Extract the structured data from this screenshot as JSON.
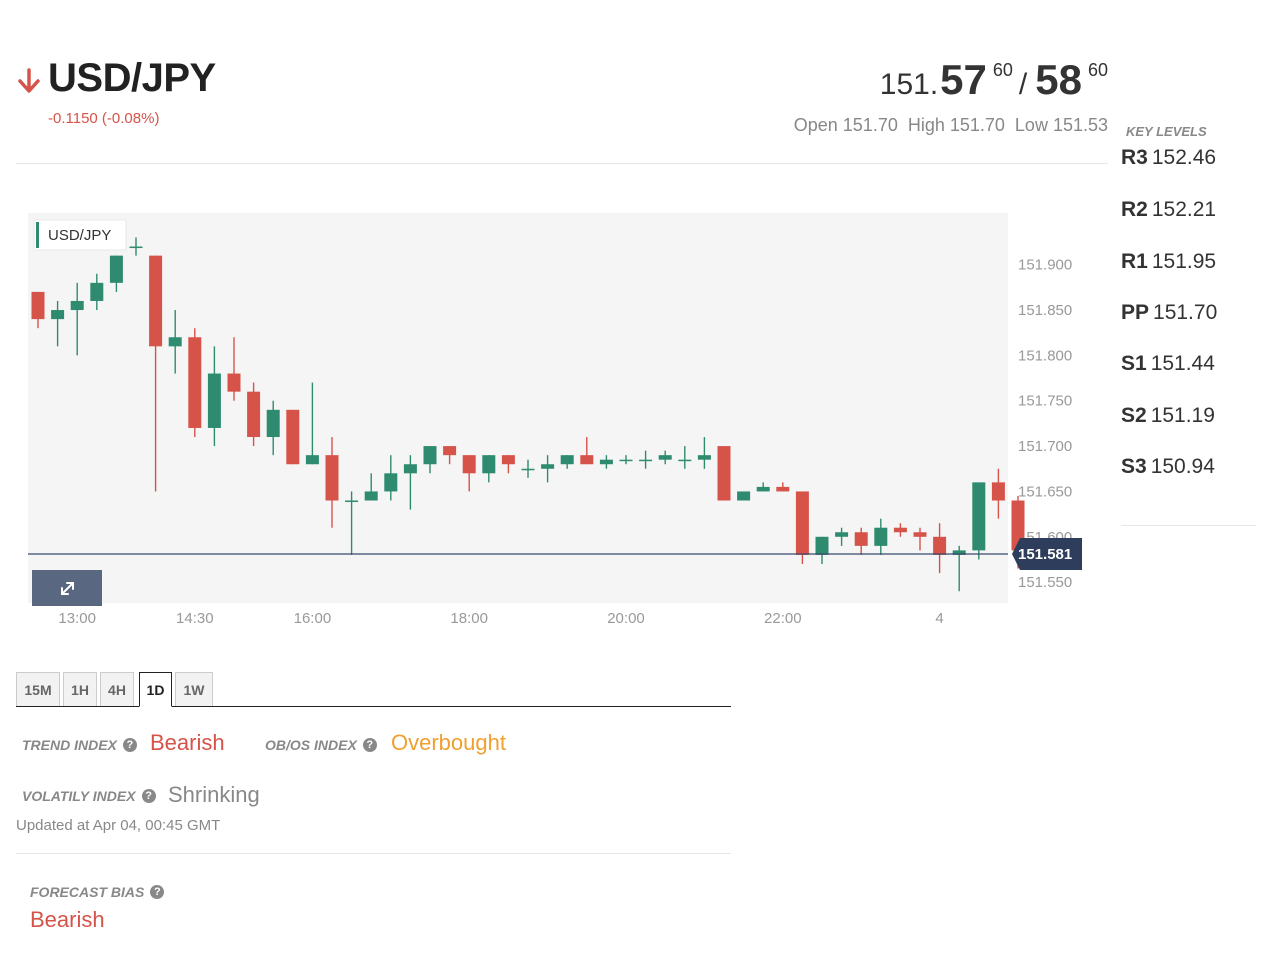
{
  "header": {
    "pair": "USD/JPY",
    "change": "-0.1150 (-0.08%)",
    "bid": {
      "int": "151.",
      "big": "57",
      "sup": "60"
    },
    "separator": "/",
    "ask": {
      "big": "58",
      "sup": "60"
    },
    "open": "Open 151.70",
    "high": "High 151.70",
    "low": "Low 151.53"
  },
  "key_levels": {
    "title": "KEY LEVELS",
    "levels": [
      {
        "name": "R3",
        "value": "152.46"
      },
      {
        "name": "R2",
        "value": "152.21"
      },
      {
        "name": "R1",
        "value": "151.95"
      },
      {
        "name": "PP",
        "value": "151.70"
      },
      {
        "name": "S1",
        "value": "151.44"
      },
      {
        "name": "S2",
        "value": "151.19"
      },
      {
        "name": "S3",
        "value": "150.94"
      }
    ]
  },
  "colors": {
    "up": "#2e8b6f",
    "down": "#d6534a",
    "accent": "#3a4a6b",
    "overbought": "#f0a030"
  },
  "chart_data": {
    "type": "candlestick",
    "legend": "USD/JPY",
    "current_price": "151.581",
    "y_ticks": [
      "151.900",
      "151.850",
      "151.800",
      "151.750",
      "151.700",
      "151.650",
      "151.600",
      "151.550"
    ],
    "ylim": [
      151.527,
      151.957
    ],
    "x_ticks": [
      "13:00",
      "14:30",
      "16:00",
      "18:00",
      "20:00",
      "22:00",
      "4"
    ],
    "candles": [
      [
        151.87,
        151.87,
        151.83,
        151.84
      ],
      [
        151.84,
        151.86,
        151.81,
        151.85
      ],
      [
        151.85,
        151.88,
        151.8,
        151.86
      ],
      [
        151.86,
        151.89,
        151.85,
        151.88
      ],
      [
        151.88,
        151.91,
        151.87,
        151.91
      ],
      [
        151.92,
        151.93,
        151.91,
        151.92
      ],
      [
        151.91,
        151.91,
        151.65,
        151.81
      ],
      [
        151.81,
        151.85,
        151.78,
        151.82
      ],
      [
        151.82,
        151.83,
        151.71,
        151.72
      ],
      [
        151.72,
        151.81,
        151.7,
        151.78
      ],
      [
        151.78,
        151.82,
        151.75,
        151.76
      ],
      [
        151.76,
        151.77,
        151.7,
        151.71
      ],
      [
        151.71,
        151.75,
        151.69,
        151.74
      ],
      [
        151.74,
        151.74,
        151.68,
        151.68
      ],
      [
        151.68,
        151.77,
        151.68,
        151.69
      ],
      [
        151.69,
        151.71,
        151.61,
        151.64
      ],
      [
        151.64,
        151.65,
        151.58,
        151.64
      ],
      [
        151.64,
        151.67,
        151.64,
        151.65
      ],
      [
        151.65,
        151.69,
        151.64,
        151.67
      ],
      [
        151.67,
        151.69,
        151.63,
        151.68
      ],
      [
        151.68,
        151.7,
        151.67,
        151.7
      ],
      [
        151.7,
        151.7,
        151.68,
        151.69
      ],
      [
        151.69,
        151.69,
        151.65,
        151.67
      ],
      [
        151.67,
        151.69,
        151.66,
        151.69
      ],
      [
        151.69,
        151.69,
        151.67,
        151.68
      ],
      [
        151.675,
        151.685,
        151.665,
        151.675
      ],
      [
        151.675,
        151.69,
        151.66,
        151.68
      ],
      [
        151.68,
        151.69,
        151.675,
        151.69
      ],
      [
        151.69,
        151.71,
        151.68,
        151.68
      ],
      [
        151.68,
        151.69,
        151.675,
        151.685
      ],
      [
        151.685,
        151.69,
        151.68,
        151.685
      ],
      [
        151.685,
        151.695,
        151.675,
        151.685
      ],
      [
        151.685,
        151.695,
        151.68,
        151.69
      ],
      [
        151.685,
        151.7,
        151.675,
        151.685
      ],
      [
        151.685,
        151.71,
        151.675,
        151.69
      ],
      [
        151.7,
        151.7,
        151.64,
        151.64
      ],
      [
        151.64,
        151.65,
        151.64,
        151.65
      ],
      [
        151.65,
        151.66,
        151.65,
        151.655
      ],
      [
        151.655,
        151.66,
        151.65,
        151.65
      ],
      [
        151.65,
        151.65,
        151.57,
        151.58
      ],
      [
        151.58,
        151.6,
        151.57,
        151.6
      ],
      [
        151.6,
        151.61,
        151.59,
        151.605
      ],
      [
        151.605,
        151.61,
        151.58,
        151.59
      ],
      [
        151.59,
        151.62,
        151.58,
        151.61
      ],
      [
        151.61,
        151.615,
        151.6,
        151.605
      ],
      [
        151.605,
        151.61,
        151.585,
        151.6
      ],
      [
        151.6,
        151.615,
        151.56,
        151.58
      ],
      [
        151.58,
        151.59,
        151.54,
        151.585
      ],
      [
        151.585,
        151.66,
        151.575,
        151.66
      ],
      [
        151.66,
        151.675,
        151.62,
        151.64
      ],
      [
        151.64,
        151.645,
        151.565,
        151.585
      ]
    ]
  },
  "timeframes": [
    "15M",
    "1H",
    "4H",
    "1D",
    "1W"
  ],
  "active_timeframe": "1D",
  "indicators": {
    "trend_label": "TREND INDEX",
    "trend_value": "Bearish",
    "obos_label": "OB/OS INDEX",
    "obos_value": "Overbought",
    "volatility_label": "VOLATILY INDEX",
    "volatility_value": "Shrinking",
    "help_glyph": "?"
  },
  "updated": "Updated at Apr 04, 00:45 GMT",
  "forecast": {
    "label": "FORECAST BIAS",
    "value": "Bearish"
  },
  "icons": {
    "trend": "arrow-down-icon",
    "expand": "expand-icon",
    "help": "question-circle-icon"
  }
}
